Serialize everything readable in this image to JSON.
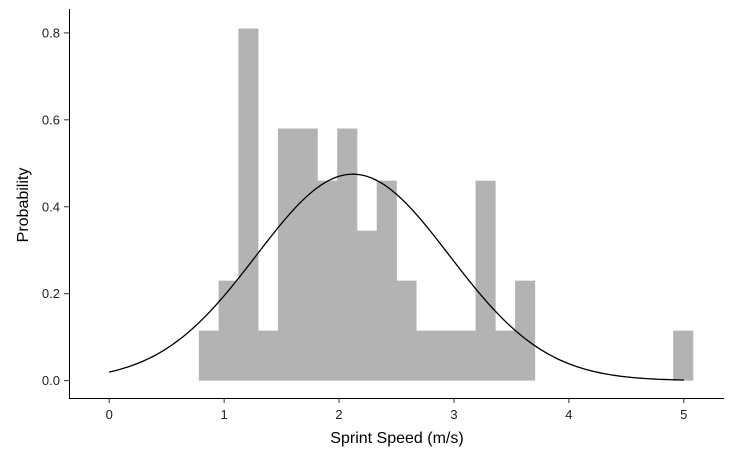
{
  "chart_data": {
    "type": "bar",
    "subtype": "histogram-with-density-curve",
    "xlabel": "Sprint Speed (m/s)",
    "ylabel": "Probability",
    "xlim": [
      -0.35,
      5.35
    ],
    "ylim": [
      -0.04,
      0.855
    ],
    "xticks": [
      0,
      1,
      2,
      3,
      4,
      5
    ],
    "xtick_labels": [
      "0",
      "1",
      "2",
      "3",
      "4",
      "5"
    ],
    "yticks": [
      0.0,
      0.2,
      0.4,
      0.6,
      0.8
    ],
    "ytick_labels": [
      "0.0",
      "0.2",
      "0.4",
      "0.6",
      "0.8"
    ],
    "bin_width": 0.172,
    "bins": [
      {
        "start": 0.78,
        "value": 0.115
      },
      {
        "start": 0.952,
        "value": 0.23
      },
      {
        "start": 1.124,
        "value": 0.81
      },
      {
        "start": 1.296,
        "value": 0.115
      },
      {
        "start": 1.468,
        "value": 0.58
      },
      {
        "start": 1.64,
        "value": 0.58
      },
      {
        "start": 1.812,
        "value": 0.46
      },
      {
        "start": 1.984,
        "value": 0.58
      },
      {
        "start": 2.156,
        "value": 0.345
      },
      {
        "start": 2.328,
        "value": 0.46
      },
      {
        "start": 2.5,
        "value": 0.23
      },
      {
        "start": 2.672,
        "value": 0.115
      },
      {
        "start": 2.844,
        "value": 0.115
      },
      {
        "start": 3.016,
        "value": 0.115
      },
      {
        "start": 3.188,
        "value": 0.46
      },
      {
        "start": 3.36,
        "value": 0.115
      },
      {
        "start": 3.532,
        "value": 0.23
      },
      {
        "start": 4.908,
        "value": 0.115
      }
    ],
    "density_curve": {
      "distribution": "normal",
      "mean": 2.12,
      "sd": 0.84,
      "x_range": [
        0.0,
        5.0
      ]
    },
    "bar_color": "#b3b3b3",
    "curve_color": "#000000",
    "grid": false,
    "legend": "none"
  }
}
